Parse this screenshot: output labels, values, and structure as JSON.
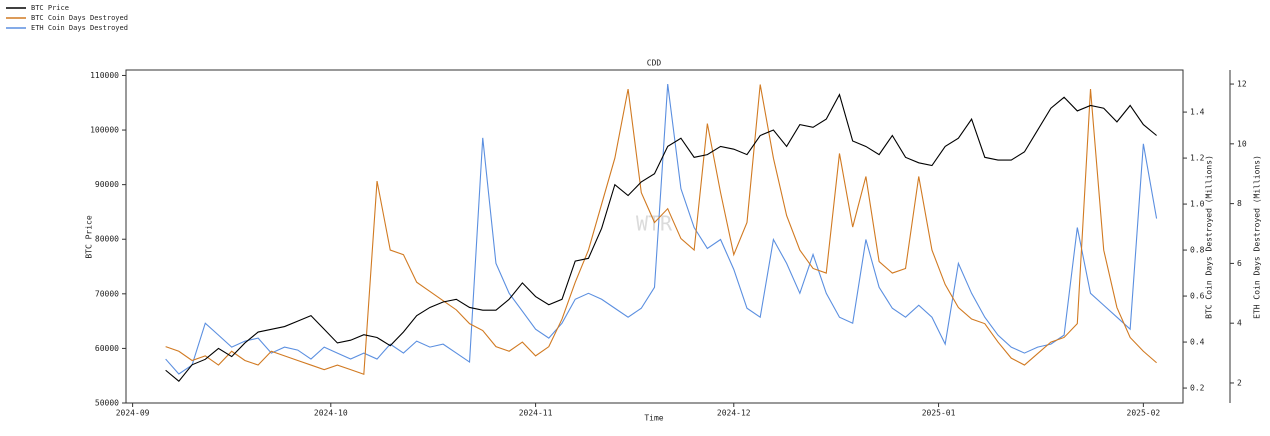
{
  "chart_data": {
    "type": "line",
    "title": "CDD",
    "xlabel": "Time",
    "ylabel": "BTC Price",
    "y2label": "BTC Coin Days Destroyed (Millions)",
    "y3label": "ETH Coin Days Destroyed (Millions)",
    "watermark": "WTR",
    "legend": "upper left",
    "x": [
      "2024-09-06",
      "2024-09-08",
      "2024-09-10",
      "2024-09-12",
      "2024-09-14",
      "2024-09-16",
      "2024-09-18",
      "2024-09-20",
      "2024-09-22",
      "2024-09-24",
      "2024-09-26",
      "2024-09-28",
      "2024-09-30",
      "2024-10-02",
      "2024-10-04",
      "2024-10-06",
      "2024-10-08",
      "2024-10-10",
      "2024-10-12",
      "2024-10-14",
      "2024-10-16",
      "2024-10-18",
      "2024-10-20",
      "2024-10-22",
      "2024-10-24",
      "2024-10-26",
      "2024-10-28",
      "2024-10-30",
      "2024-11-01",
      "2024-11-03",
      "2024-11-05",
      "2024-11-07",
      "2024-11-09",
      "2024-11-11",
      "2024-11-13",
      "2024-11-15",
      "2024-11-17",
      "2024-11-19",
      "2024-11-21",
      "2024-11-23",
      "2024-11-25",
      "2024-11-27",
      "2024-11-29",
      "2024-12-01",
      "2024-12-03",
      "2024-12-05",
      "2024-12-07",
      "2024-12-09",
      "2024-12-11",
      "2024-12-13",
      "2024-12-15",
      "2024-12-17",
      "2024-12-19",
      "2024-12-21",
      "2024-12-23",
      "2024-12-25",
      "2024-12-27",
      "2024-12-29",
      "2024-12-31",
      "2025-01-02",
      "2025-01-04",
      "2025-01-06",
      "2025-01-08",
      "2025-01-10",
      "2025-01-12",
      "2025-01-14",
      "2025-01-16",
      "2025-01-18",
      "2025-01-20",
      "2025-01-22",
      "2025-01-24",
      "2025-01-26",
      "2025-01-28",
      "2025-01-30",
      "2025-02-01",
      "2025-02-03"
    ],
    "xlim": [
      "2024-08-31",
      "2025-02-07"
    ],
    "xticks": [
      {
        "value": "2024-09-01",
        "label": "2024-09"
      },
      {
        "value": "2024-10-01",
        "label": "2024-10"
      },
      {
        "value": "2024-11-01",
        "label": "2024-11"
      },
      {
        "value": "2024-12-01",
        "label": "2024-12"
      },
      {
        "value": "2025-01-01",
        "label": "2025-01"
      },
      {
        "value": "2025-02-01",
        "label": "2025-02"
      }
    ],
    "ylim": [
      50000,
      111000
    ],
    "yticks": [
      50000,
      60000,
      70000,
      80000,
      90000,
      100000,
      110000
    ],
    "y2lim": [
      0.135,
      1.583
    ],
    "y2ticks": [
      0.2,
      0.4,
      0.6,
      0.8,
      {
        "value": 1,
        "label": "1.0"
      },
      1.2,
      1.4
    ],
    "y3lim": [
      1.33,
      12.47
    ],
    "y3ticks": [
      2,
      4,
      6,
      8,
      10,
      12
    ],
    "series": [
      {
        "name": "BTC Price",
        "color": "#000000",
        "axis": "y",
        "values": [
          56000,
          54000,
          57000,
          58000,
          60000,
          58500,
          61000,
          63000,
          63500,
          64000,
          65000,
          66000,
          63500,
          61000,
          61500,
          62500,
          62000,
          60500,
          63000,
          66000,
          67500,
          68500,
          69000,
          67500,
          67000,
          67000,
          69000,
          72000,
          69500,
          68000,
          69000,
          76000,
          76500,
          82000,
          90000,
          88000,
          90500,
          92000,
          97000,
          98500,
          95000,
          95500,
          97000,
          96500,
          95500,
          99000,
          100000,
          97000,
          101000,
          100500,
          102000,
          106500,
          98000,
          97000,
          95500,
          99000,
          95000,
          94000,
          93500,
          97000,
          98500,
          102000,
          95000,
          94500,
          94500,
          96000,
          100000,
          104000,
          106000,
          103500,
          104500,
          104000,
          101500,
          104500,
          101000,
          99000
        ]
      },
      {
        "name": "BTC Coin Days Destroyed",
        "color": "#d17a22",
        "axis": "y2",
        "values": [
          0.38,
          0.36,
          0.32,
          0.34,
          0.3,
          0.36,
          0.32,
          0.3,
          0.36,
          0.34,
          0.32,
          0.3,
          0.28,
          0.3,
          0.28,
          0.26,
          1.1,
          0.8,
          0.78,
          0.66,
          0.62,
          0.58,
          0.54,
          0.48,
          0.45,
          0.38,
          0.36,
          0.4,
          0.34,
          0.38,
          0.5,
          0.66,
          0.8,
          1.0,
          1.2,
          1.5,
          1.05,
          0.92,
          0.98,
          0.85,
          0.8,
          1.35,
          1.05,
          0.78,
          0.92,
          1.52,
          1.2,
          0.95,
          0.8,
          0.72,
          0.7,
          1.22,
          0.9,
          1.12,
          0.75,
          0.7,
          0.72,
          1.12,
          0.8,
          0.65,
          0.55,
          0.5,
          0.48,
          0.4,
          0.33,
          0.3,
          0.35,
          0.4,
          0.42,
          0.48,
          1.5,
          0.8,
          0.55,
          0.42,
          0.36,
          0.31
        ]
      },
      {
        "name": "ETH Coin Days Destroyed",
        "color": "#5b8fe0",
        "axis": "y3",
        "values": [
          2.8,
          2.3,
          2.6,
          4.0,
          3.6,
          3.2,
          3.4,
          3.5,
          3.0,
          3.2,
          3.1,
          2.8,
          3.2,
          3.0,
          2.8,
          3.0,
          2.8,
          3.3,
          3.0,
          3.4,
          3.2,
          3.3,
          3.0,
          2.7,
          10.2,
          6.0,
          5.0,
          4.4,
          3.8,
          3.5,
          4.0,
          4.8,
          5.0,
          4.8,
          4.5,
          4.2,
          4.5,
          5.2,
          12.0,
          8.5,
          7.2,
          6.5,
          6.8,
          5.8,
          4.5,
          4.2,
          6.8,
          6.0,
          5.0,
          6.3,
          5.0,
          4.2,
          4.0,
          6.8,
          5.2,
          4.5,
          4.2,
          4.6,
          4.2,
          3.3,
          6.0,
          5.0,
          4.2,
          3.6,
          3.2,
          3.0,
          3.2,
          3.3,
          3.6,
          7.2,
          5.0,
          4.6,
          4.2,
          3.8,
          10.0,
          7.5
        ]
      }
    ]
  }
}
